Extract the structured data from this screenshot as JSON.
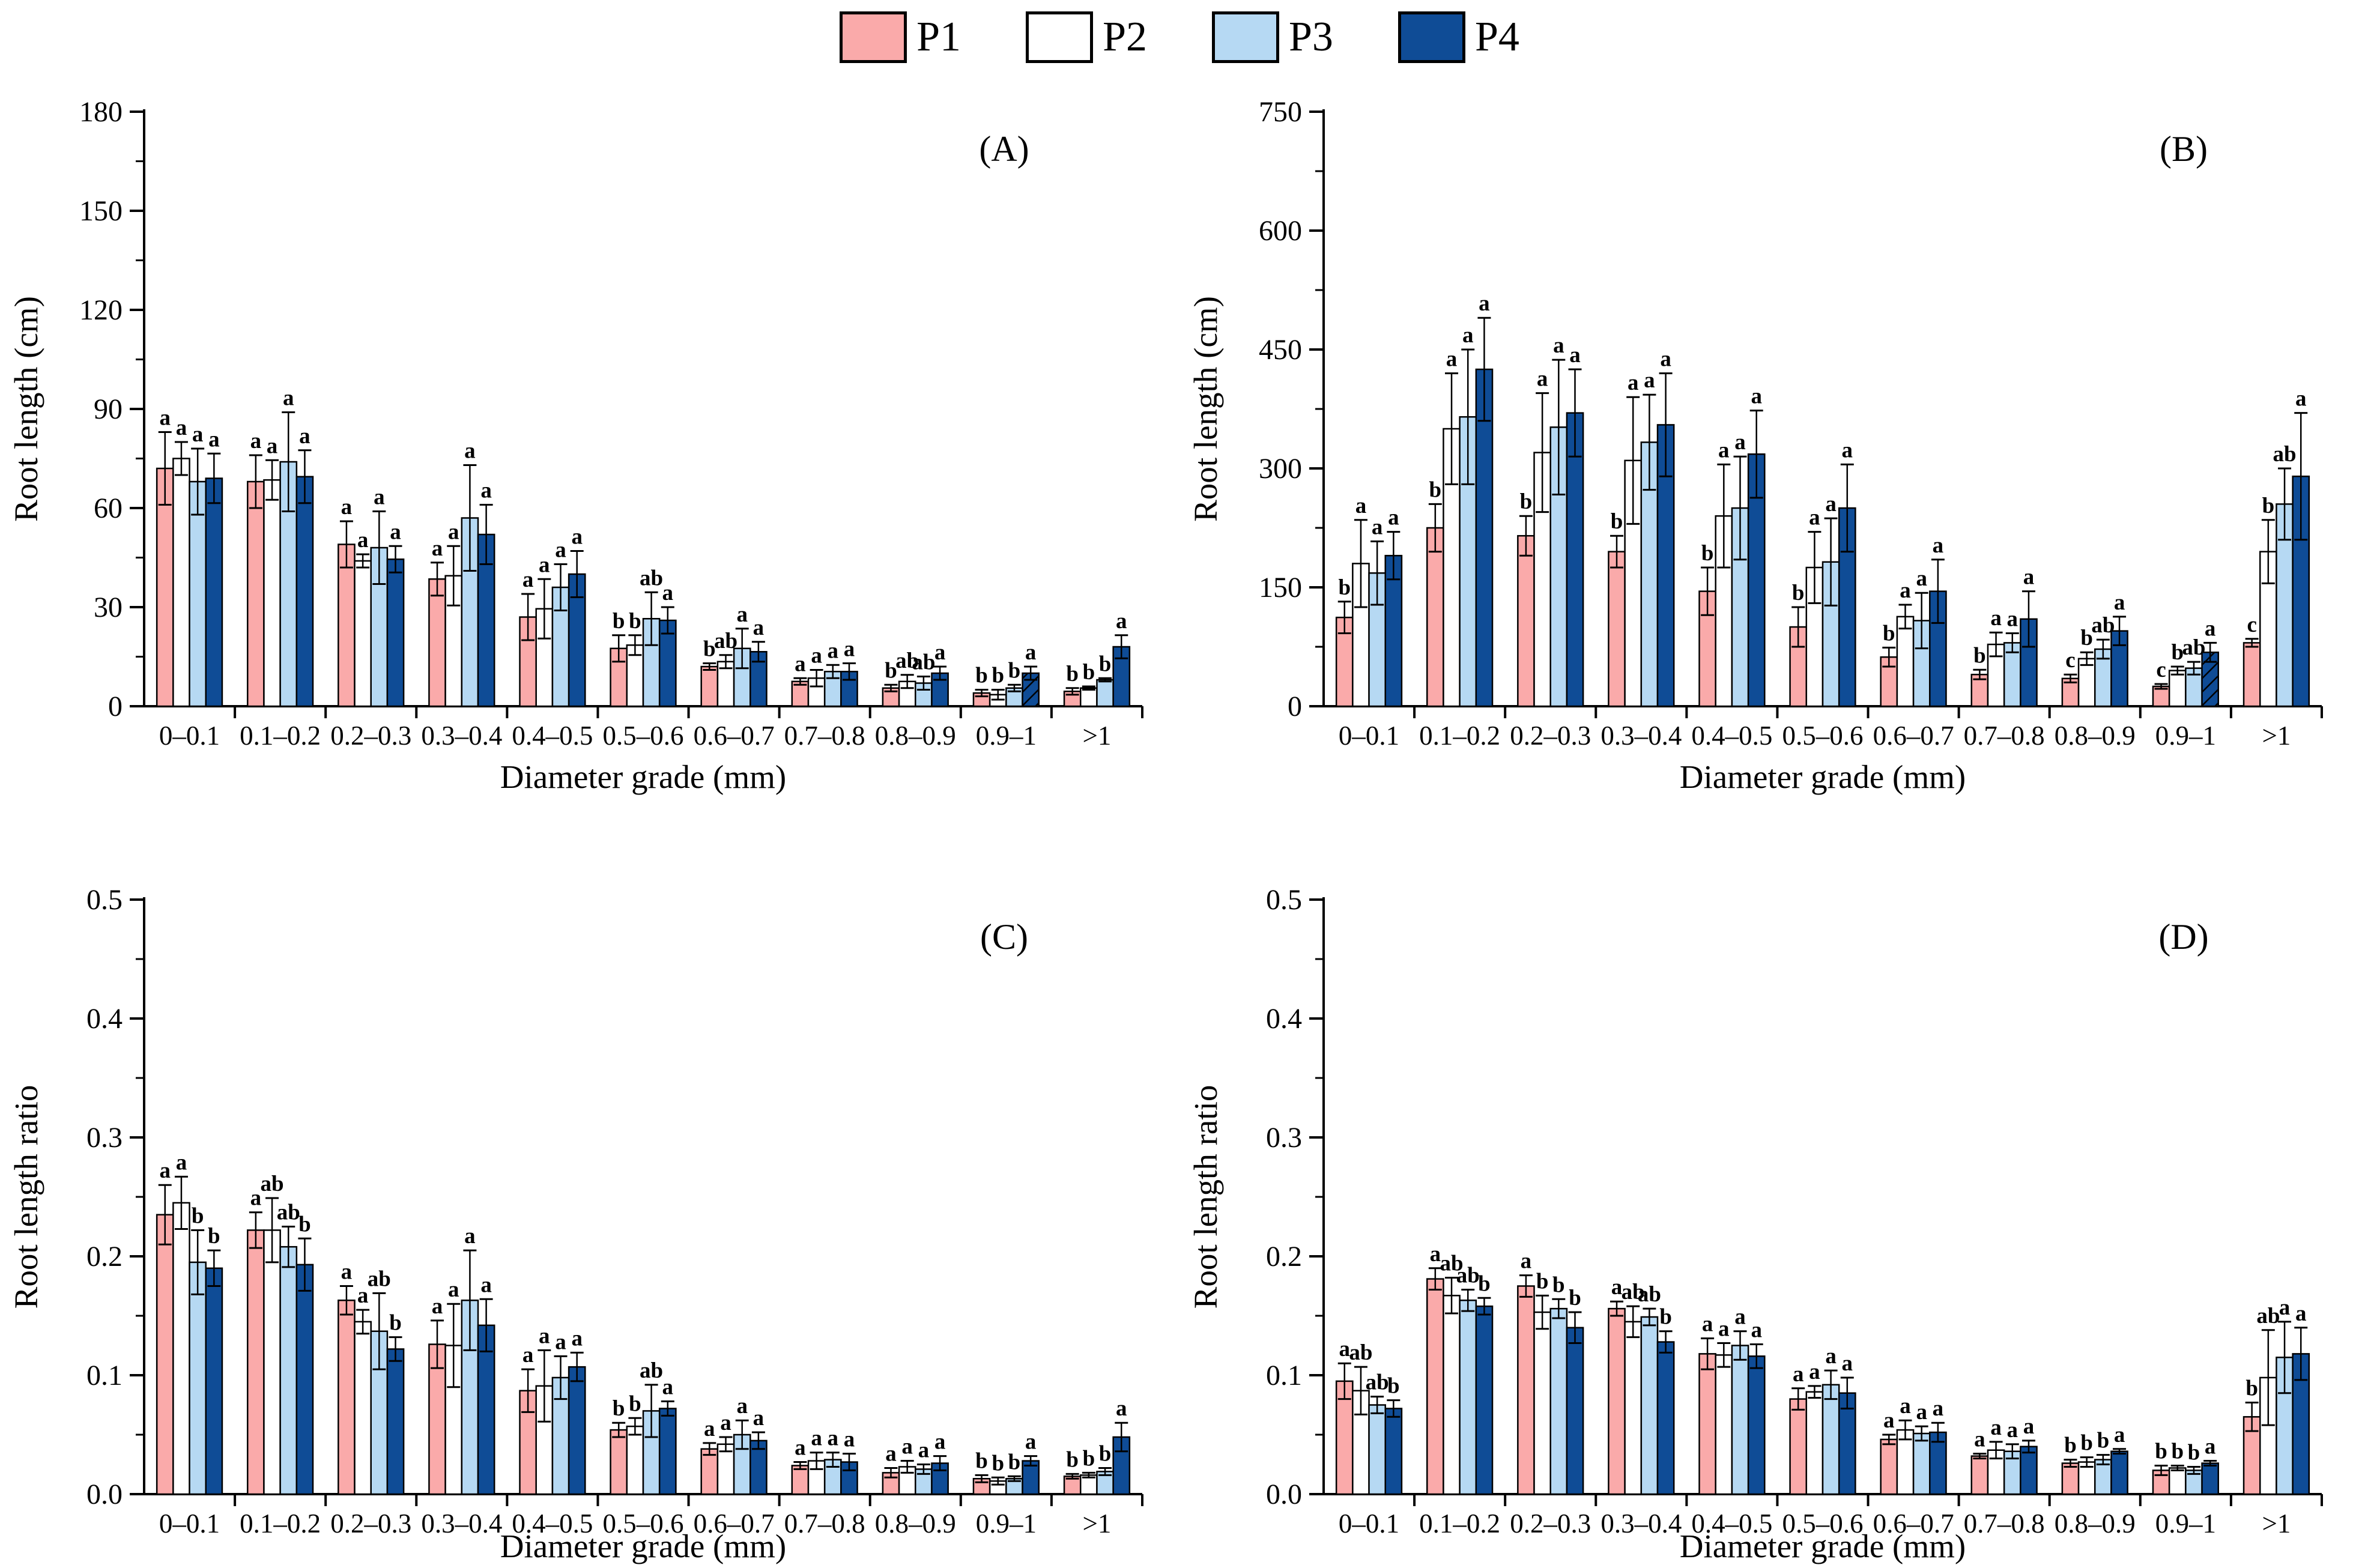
{
  "legend": {
    "items": [
      {
        "label": "P1",
        "color": "#FAAAAA"
      },
      {
        "label": "P2",
        "color": "#FFFFFF"
      },
      {
        "label": "P3",
        "color": "#B6D9F3"
      },
      {
        "label": "P4",
        "color": "#0F4C96"
      }
    ]
  },
  "colors": {
    "bar_stroke": "#000000",
    "axis": "#000000",
    "letter": "#000000"
  },
  "chart_data": [
    {
      "type": "bar",
      "panel_label": "(A)",
      "ylabel": "Root length (cm)",
      "xlabel": "Diameter grade (mm)",
      "ylim": [
        0,
        180
      ],
      "yticks": [
        0,
        30,
        60,
        90,
        120,
        150,
        180
      ],
      "ytick_decimals": 0,
      "grid": false,
      "legend_position": "top-shared",
      "categories": [
        "0–0.1",
        "0.1–0.2",
        "0.2–0.3",
        "0.3–0.4",
        "0.4–0.5",
        "0.5–0.6",
        "0.6–0.7",
        "0.7–0.8",
        "0.8–0.9",
        "0.9–1",
        ">1"
      ],
      "series": [
        {
          "name": "P1",
          "color": "#FAAAAA",
          "values": [
            72,
            68,
            49,
            38.5,
            27,
            17.5,
            12,
            7.5,
            5.5,
            4,
            4.5
          ],
          "errors": [
            11,
            8,
            7,
            5,
            7,
            4,
            1,
            1,
            1,
            1,
            1
          ],
          "letters": [
            "a",
            "a",
            "a",
            "a",
            "a",
            "b",
            "b",
            "a",
            "b",
            "b",
            "b"
          ]
        },
        {
          "name": "P2",
          "color": "#FFFFFF",
          "values": [
            75,
            68.5,
            44,
            39.5,
            29.5,
            18.5,
            13.5,
            8.5,
            7.5,
            3.5,
            5.5
          ],
          "errors": [
            5,
            6,
            2,
            9,
            9,
            3,
            2,
            2.5,
            2,
            1.5,
            0.5
          ],
          "letters": [
            "a",
            "a",
            "a",
            "a",
            "a",
            "b",
            "ab",
            "a",
            "ab",
            "b",
            "b"
          ]
        },
        {
          "name": "P3",
          "color": "#B6D9F3",
          "values": [
            68,
            74,
            48,
            57,
            36,
            26.5,
            17.5,
            10.5,
            7,
            5.5,
            8
          ],
          "errors": [
            10,
            15,
            11,
            16,
            7,
            8,
            6,
            2,
            2,
            1,
            0.5
          ],
          "letters": [
            "a",
            "a",
            "a",
            "a",
            "a",
            "ab",
            "a",
            "a",
            "ab",
            "b",
            "b"
          ]
        },
        {
          "name": "P4",
          "color": "#0F4C96",
          "values": [
            69,
            69.5,
            44.5,
            52,
            40,
            26,
            16.5,
            10.5,
            10,
            10,
            18
          ],
          "errors": [
            7.5,
            8,
            4,
            9,
            7,
            4,
            3,
            2.5,
            2,
            2,
            3.5
          ],
          "letters": [
            "a",
            "a",
            "a",
            "a",
            "a",
            "a",
            "a",
            "a",
            "a",
            "a",
            "a"
          ]
        }
      ],
      "hatched": [
        [
          9,
          3
        ]
      ]
    },
    {
      "type": "bar",
      "panel_label": "(B)",
      "ylabel": "Root length (cm)",
      "xlabel": "Diameter grade (mm)",
      "ylim": [
        0,
        750
      ],
      "yticks": [
        0,
        150,
        300,
        450,
        600,
        750
      ],
      "ytick_decimals": 0,
      "grid": false,
      "legend_position": "top-shared",
      "categories": [
        "0–0.1",
        "0.1–0.2",
        "0.2–0.3",
        "0.3–0.4",
        "0.4–0.5",
        "0.5–0.6",
        "0.6–0.7",
        "0.7–0.8",
        "0.8–0.9",
        "0.9–1",
        ">1"
      ],
      "series": [
        {
          "name": "P1",
          "color": "#FAAAAA",
          "values": [
            112,
            225,
            215,
            195,
            145,
            100,
            62,
            40,
            35,
            25,
            80
          ],
          "errors": [
            20,
            30,
            25,
            20,
            30,
            25,
            12,
            6,
            5,
            3,
            5
          ],
          "letters": [
            "b",
            "b",
            "b",
            "b",
            "b",
            "b",
            "b",
            "b",
            "c",
            "c",
            "c"
          ]
        },
        {
          "name": "P2",
          "color": "#FFFFFF",
          "values": [
            180,
            350,
            320,
            310,
            240,
            175,
            113,
            78,
            60,
            45,
            195
          ],
          "errors": [
            55,
            70,
            75,
            80,
            65,
            45,
            15,
            15,
            8,
            5,
            40
          ],
          "letters": [
            "a",
            "a",
            "a",
            "a",
            "a",
            "a",
            "a",
            "a",
            "b",
            "b",
            "b"
          ]
        },
        {
          "name": "P3",
          "color": "#B6D9F3",
          "values": [
            168,
            365,
            352,
            333,
            250,
            182,
            108,
            80,
            72,
            48,
            255
          ],
          "errors": [
            40,
            85,
            85,
            60,
            65,
            55,
            35,
            12,
            12,
            8,
            45
          ],
          "letters": [
            "a",
            "a",
            "a",
            "a",
            "a",
            "a",
            "a",
            "a",
            "ab",
            "ab",
            "ab"
          ]
        },
        {
          "name": "P4",
          "color": "#0F4C96",
          "values": [
            190,
            425,
            370,
            355,
            318,
            250,
            145,
            110,
            95,
            68,
            290
          ],
          "errors": [
            30,
            65,
            55,
            65,
            55,
            55,
            40,
            35,
            18,
            12,
            80
          ],
          "letters": [
            "a",
            "a",
            "a",
            "a",
            "a",
            "a",
            "a",
            "a",
            "a",
            "a",
            "a"
          ]
        }
      ],
      "hatched": [
        [
          9,
          3
        ]
      ]
    },
    {
      "type": "bar",
      "panel_label": "(C)",
      "ylabel": "Root length ratio",
      "xlabel": "Diameter grade (mm)",
      "ylim": [
        0,
        0.5
      ],
      "yticks": [
        0,
        0.1,
        0.2,
        0.3,
        0.4,
        0.5
      ],
      "ytick_decimals": 1,
      "grid": false,
      "legend_position": "top-shared",
      "categories": [
        "0–0.1",
        "0.1–0.2",
        "0.2–0.3",
        "0.3–0.4",
        "0.4–0.5",
        "0.5–0.6",
        "0.6–0.7",
        "0.7–0.8",
        "0.8–0.9",
        "0.9–1",
        ">1"
      ],
      "series": [
        {
          "name": "P1",
          "color": "#FAAAAA",
          "values": [
            0.235,
            0.222,
            0.163,
            0.126,
            0.087,
            0.054,
            0.038,
            0.024,
            0.018,
            0.013,
            0.015
          ],
          "errors": [
            0.025,
            0.015,
            0.012,
            0.02,
            0.018,
            0.006,
            0.005,
            0.003,
            0.004,
            0.003,
            0.002
          ],
          "letters": [
            "a",
            "a",
            "a",
            "a",
            "a",
            "b",
            "a",
            "a",
            "a",
            "b",
            "b"
          ]
        },
        {
          "name": "P2",
          "color": "#FFFFFF",
          "values": [
            0.245,
            0.222,
            0.145,
            0.125,
            0.091,
            0.057,
            0.042,
            0.028,
            0.023,
            0.011,
            0.016
          ],
          "errors": [
            0.022,
            0.027,
            0.01,
            0.035,
            0.03,
            0.007,
            0.006,
            0.007,
            0.005,
            0.003,
            0.002
          ],
          "letters": [
            "a",
            "ab",
            "a",
            "a",
            "a",
            "b",
            "a",
            "a",
            "a",
            "b",
            "b"
          ]
        },
        {
          "name": "P3",
          "color": "#B6D9F3",
          "values": [
            0.195,
            0.208,
            0.137,
            0.163,
            0.098,
            0.07,
            0.05,
            0.029,
            0.021,
            0.013,
            0.019
          ],
          "errors": [
            0.027,
            0.017,
            0.032,
            0.042,
            0.018,
            0.022,
            0.012,
            0.006,
            0.004,
            0.002,
            0.003
          ],
          "letters": [
            "b",
            "ab",
            "ab",
            "a",
            "a",
            "ab",
            "a",
            "a",
            "a",
            "b",
            "b"
          ]
        },
        {
          "name": "P4",
          "color": "#0F4C96",
          "values": [
            0.19,
            0.193,
            0.122,
            0.142,
            0.107,
            0.072,
            0.045,
            0.027,
            0.026,
            0.028,
            0.048
          ],
          "errors": [
            0.015,
            0.022,
            0.01,
            0.022,
            0.012,
            0.006,
            0.007,
            0.007,
            0.006,
            0.004,
            0.012
          ],
          "letters": [
            "b",
            "b",
            "b",
            "a",
            "a",
            "a",
            "a",
            "a",
            "a",
            "a",
            "a"
          ]
        }
      ],
      "hatched": []
    },
    {
      "type": "bar",
      "panel_label": "(D)",
      "ylabel": "Root length ratio",
      "xlabel": "Diameter grade (mm)",
      "ylim": [
        0,
        0.5
      ],
      "yticks": [
        0,
        0.1,
        0.2,
        0.3,
        0.4,
        0.5
      ],
      "ytick_decimals": 1,
      "grid": false,
      "legend_position": "top-shared",
      "categories": [
        "0–0.1",
        "0.1–0.2",
        "0.2–0.3",
        "0.3–0.4",
        "0.4–0.5",
        "0.5–0.6",
        "0.6–0.7",
        "0.7–0.8",
        "0.8–0.9",
        "0.9–1",
        ">1"
      ],
      "series": [
        {
          "name": "P1",
          "color": "#FAAAAA",
          "values": [
            0.095,
            0.181,
            0.175,
            0.156,
            0.118,
            0.08,
            0.046,
            0.032,
            0.026,
            0.02,
            0.065
          ],
          "errors": [
            0.015,
            0.009,
            0.009,
            0.006,
            0.013,
            0.009,
            0.004,
            0.002,
            0.003,
            0.004,
            0.012
          ],
          "letters": [
            "a",
            "a",
            "a",
            "a",
            "a",
            "a",
            "a",
            "a",
            "b",
            "b",
            "b"
          ]
        },
        {
          "name": "P2",
          "color": "#FFFFFF",
          "values": [
            0.087,
            0.167,
            0.153,
            0.145,
            0.117,
            0.086,
            0.054,
            0.037,
            0.027,
            0.022,
            0.098
          ],
          "errors": [
            0.02,
            0.015,
            0.014,
            0.013,
            0.01,
            0.005,
            0.008,
            0.007,
            0.004,
            0.002,
            0.04
          ],
          "letters": [
            "ab",
            "ab",
            "b",
            "ab",
            "a",
            "a",
            "a",
            "a",
            "b",
            "b",
            "ab"
          ]
        },
        {
          "name": "P3",
          "color": "#B6D9F3",
          "values": [
            0.075,
            0.163,
            0.156,
            0.149,
            0.125,
            0.092,
            0.051,
            0.036,
            0.029,
            0.02,
            0.115
          ],
          "errors": [
            0.007,
            0.009,
            0.008,
            0.007,
            0.012,
            0.012,
            0.006,
            0.006,
            0.004,
            0.003,
            0.03
          ],
          "letters": [
            "ab",
            "ab",
            "b",
            "ab",
            "a",
            "a",
            "a",
            "a",
            "b",
            "b",
            "a"
          ]
        },
        {
          "name": "P4",
          "color": "#0F4C96",
          "values": [
            0.072,
            0.158,
            0.14,
            0.128,
            0.116,
            0.085,
            0.052,
            0.04,
            0.036,
            0.026,
            0.118
          ],
          "errors": [
            0.007,
            0.007,
            0.013,
            0.009,
            0.01,
            0.013,
            0.008,
            0.005,
            0.002,
            0.002,
            0.022
          ],
          "letters": [
            "b",
            "b",
            "b",
            "b",
            "a",
            "a",
            "a",
            "a",
            "a",
            "a",
            "a"
          ]
        }
      ],
      "hatched": []
    }
  ]
}
